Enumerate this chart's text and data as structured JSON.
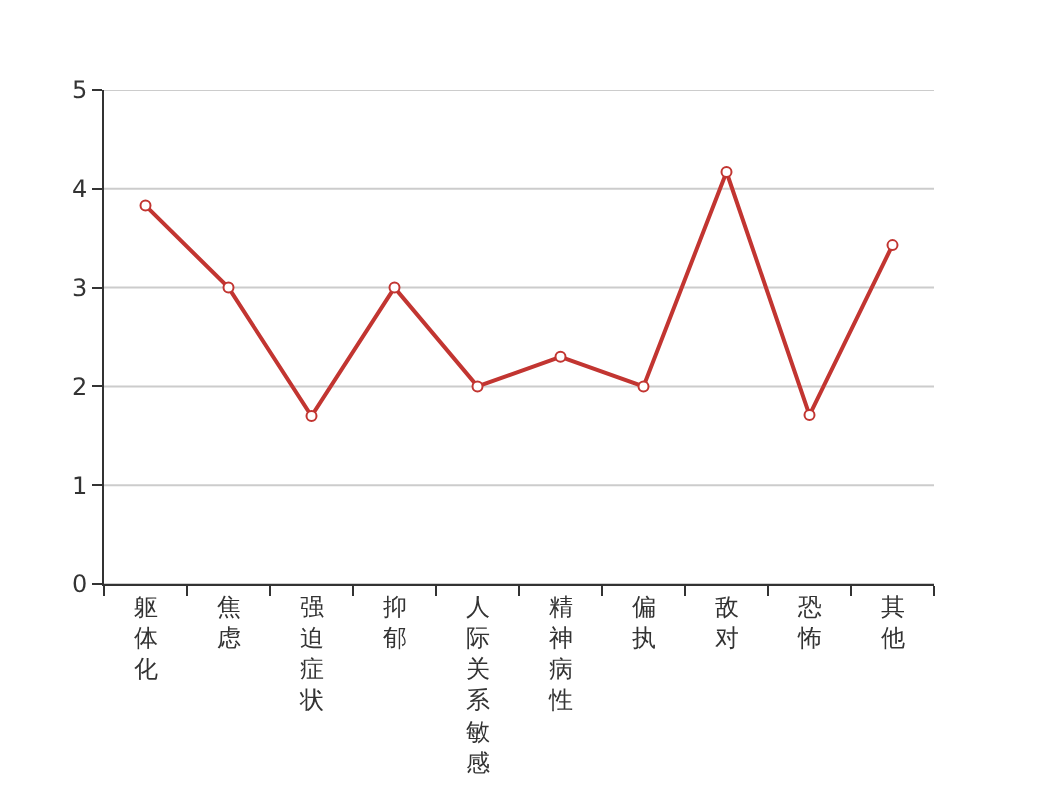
{
  "chart_data": {
    "type": "line",
    "categories": [
      "躯体化",
      "焦虑",
      "强迫症状",
      "抑郁",
      "人际关系敏感",
      "精神病性",
      "偏执",
      "敌对",
      "恐怖",
      "其他"
    ],
    "series": [
      {
        "color": "#c23531",
        "values": [
          3.83,
          3.0,
          1.7,
          3.0,
          2.0,
          2.3,
          2.0,
          4.17,
          1.71,
          3.43
        ]
      }
    ],
    "ylim": [
      0,
      5
    ],
    "yticks": [
      0,
      1,
      2,
      3,
      4,
      5
    ],
    "grid": "y",
    "marker": "circle",
    "line_style": "solid"
  }
}
